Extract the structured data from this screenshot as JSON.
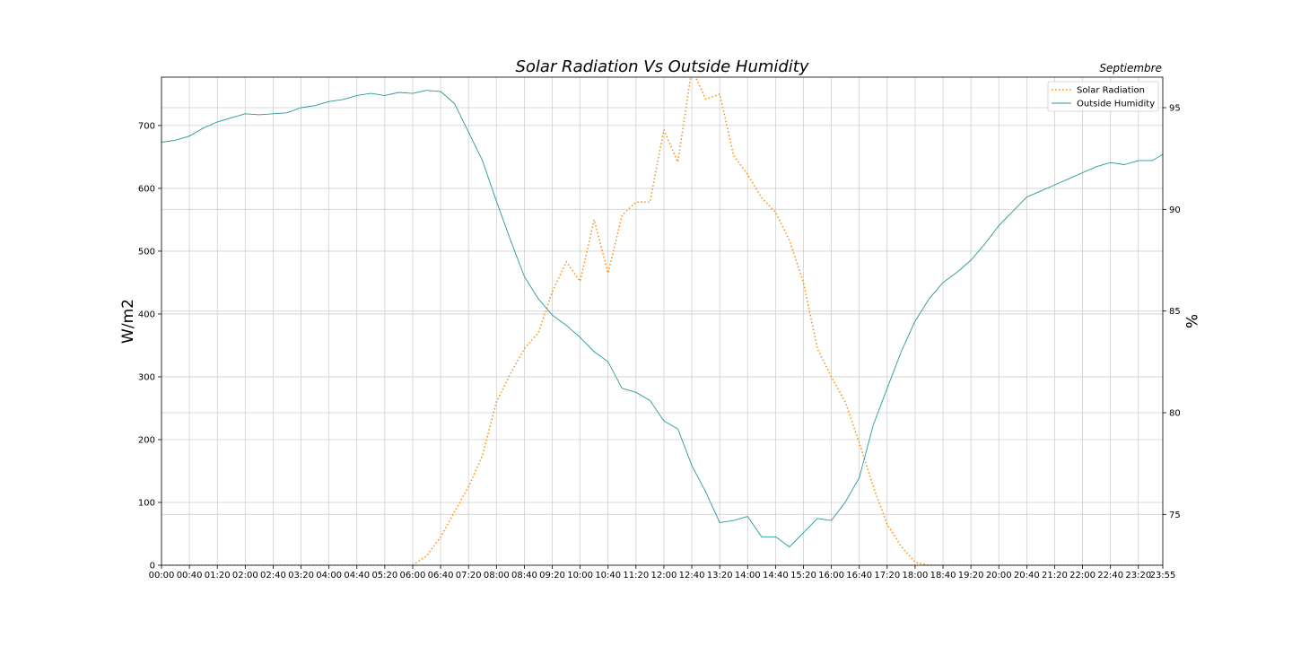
{
  "chart_data": {
    "type": "line",
    "title": "Solar Radiation Vs Outside Humidity",
    "subtitle": "Septiembre",
    "ylabel": "W/m2",
    "y2label": "%",
    "ylim": [
      0,
      777
    ],
    "y2lim": [
      72.5,
      96.5
    ],
    "yticks": [
      0,
      100,
      200,
      300,
      400,
      500,
      600,
      700
    ],
    "y2ticks": [
      75,
      80,
      85,
      90,
      95
    ],
    "x_tick_labels": [
      "00:00",
      "00:40",
      "01:20",
      "02:00",
      "02:40",
      "03:20",
      "04:00",
      "04:40",
      "05:20",
      "06:00",
      "06:40",
      "07:20",
      "08:00",
      "08:40",
      "09:20",
      "10:00",
      "10:40",
      "11:20",
      "12:00",
      "12:40",
      "13:20",
      "14:00",
      "14:40",
      "15:20",
      "16:00",
      "16:40",
      "17:20",
      "18:00",
      "18:40",
      "19:20",
      "20:00",
      "20:40",
      "21:20",
      "22:00",
      "22:40",
      "23:20",
      "23:55"
    ],
    "x_tick_minutes": [
      0,
      40,
      80,
      120,
      160,
      200,
      240,
      280,
      320,
      360,
      400,
      440,
      480,
      520,
      560,
      600,
      640,
      680,
      720,
      760,
      800,
      840,
      880,
      920,
      960,
      1000,
      1040,
      1080,
      1120,
      1160,
      1200,
      1240,
      1280,
      1320,
      1360,
      1400,
      1435
    ],
    "grid": true,
    "legend_position": "top-right",
    "series": [
      {
        "name": "Solar Radiation",
        "axis": "left",
        "color": "#ff8c00",
        "style": "dotted",
        "x": [
          0,
          20,
          40,
          60,
          80,
          100,
          120,
          140,
          160,
          180,
          200,
          220,
          240,
          260,
          280,
          300,
          320,
          340,
          360,
          380,
          400,
          420,
          440,
          460,
          480,
          500,
          520,
          540,
          560,
          580,
          600,
          620,
          640,
          660,
          680,
          700,
          720,
          740,
          760,
          780,
          800,
          820,
          840,
          860,
          880,
          900,
          920,
          940,
          960,
          980,
          1000,
          1020,
          1040,
          1060,
          1080,
          1100,
          1120,
          1140,
          1160,
          1180,
          1200,
          1220,
          1240,
          1260,
          1280,
          1300,
          1320,
          1340,
          1360,
          1380,
          1400,
          1420,
          1435
        ],
        "values": [
          0,
          0,
          0,
          0,
          0,
          0,
          0,
          0,
          0,
          0,
          0,
          0,
          0,
          0,
          0,
          0,
          0,
          0,
          0,
          15,
          45,
          85,
          125,
          175,
          260,
          305,
          345,
          370,
          435,
          483,
          452,
          550,
          465,
          557,
          578,
          578,
          693,
          642,
          790,
          742,
          750,
          652,
          622,
          585,
          562,
          517,
          450,
          345,
          300,
          260,
          195,
          125,
          65,
          30,
          5,
          0,
          0,
          0,
          0,
          0,
          0,
          0,
          0,
          0,
          0,
          0,
          0,
          0,
          0,
          0,
          0,
          0,
          0
        ]
      },
      {
        "name": "Outside Humidity",
        "axis": "right",
        "color": "#26999b",
        "style": "solid",
        "x": [
          0,
          20,
          40,
          60,
          80,
          100,
          120,
          140,
          160,
          180,
          200,
          220,
          240,
          260,
          280,
          300,
          320,
          340,
          360,
          380,
          400,
          420,
          440,
          460,
          480,
          500,
          520,
          540,
          560,
          580,
          600,
          620,
          640,
          660,
          680,
          700,
          720,
          740,
          760,
          780,
          800,
          820,
          840,
          860,
          880,
          900,
          920,
          940,
          960,
          980,
          1000,
          1020,
          1040,
          1060,
          1080,
          1100,
          1120,
          1140,
          1160,
          1180,
          1200,
          1220,
          1240,
          1260,
          1280,
          1300,
          1320,
          1340,
          1360,
          1380,
          1400,
          1420,
          1435
        ],
        "values": [
          93.3,
          93.4,
          93.6,
          94.0,
          94.3,
          94.5,
          94.7,
          94.65,
          94.7,
          94.75,
          95.0,
          95.1,
          95.3,
          95.4,
          95.6,
          95.7,
          95.6,
          95.75,
          95.7,
          95.85,
          95.8,
          95.2,
          93.8,
          92.4,
          90.4,
          88.5,
          86.7,
          85.6,
          84.8,
          84.3,
          83.7,
          83.0,
          82.5,
          81.2,
          81.0,
          80.6,
          79.6,
          79.2,
          77.4,
          76.1,
          74.6,
          74.7,
          74.9,
          73.9,
          73.9,
          73.4,
          74.1,
          74.8,
          74.7,
          75.6,
          76.8,
          79.4,
          81.2,
          83.0,
          84.5,
          85.6,
          86.4,
          86.9,
          87.5,
          88.3,
          89.2,
          89.9,
          90.6,
          90.9,
          91.2,
          91.5,
          91.8,
          92.1,
          92.3,
          92.2,
          92.4,
          92.4,
          92.7
        ]
      }
    ]
  }
}
